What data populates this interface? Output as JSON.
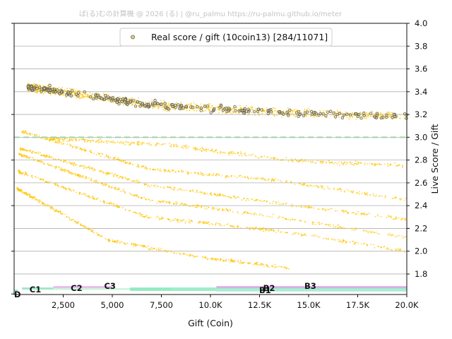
{
  "watermark": "ぱ(る)むの計算機 @ 2026 (る) | @ru_palmu  https://ru-palmu.github.io/meter",
  "chart_data": {
    "type": "scatter",
    "xlabel": "Gift (Coin)",
    "ylabel": "Live Score / Gift",
    "xlim": [
      0,
      20000
    ],
    "ylim": [
      1.62,
      4.0
    ],
    "x_ticks": [
      {
        "value": 2500,
        "label": "2,500"
      },
      {
        "value": 5000,
        "label": "5,000"
      },
      {
        "value": 7500,
        "label": "7,500"
      },
      {
        "value": 10000,
        "label": "10.0K"
      },
      {
        "value": 12500,
        "label": "12.5K"
      },
      {
        "value": 15000,
        "label": "15.0K"
      },
      {
        "value": 17500,
        "label": "17.5K"
      },
      {
        "value": 20000,
        "label": "20.0K"
      }
    ],
    "y_ticks": [
      {
        "value": 1.8,
        "label": "1.8"
      },
      {
        "value": 2.0,
        "label": "2.0"
      },
      {
        "value": 2.2,
        "label": "2.2"
      },
      {
        "value": 2.4,
        "label": "2.4"
      },
      {
        "value": 2.6,
        "label": "2.6"
      },
      {
        "value": 2.8,
        "label": "2.8"
      },
      {
        "value": 3.0,
        "label": "3.0"
      },
      {
        "value": 3.2,
        "label": "3.2"
      },
      {
        "value": 3.4,
        "label": "3.4"
      },
      {
        "value": 3.6,
        "label": "3.6"
      },
      {
        "value": 3.8,
        "label": "3.8"
      },
      {
        "value": 4.0,
        "label": "4.0"
      }
    ],
    "grid": "horizontal",
    "reference_line": {
      "y": 3.0,
      "color": "#9fd4a8",
      "style": "dashed"
    },
    "legend": {
      "placement": "top-center",
      "entry": "Real score / gift (10coin13) [284/11071]"
    },
    "colors": {
      "background_points": "#ffc400",
      "real_points_fill": "#e6d27a",
      "real_points_edge": "#555555",
      "grid": "#b0b0b0"
    },
    "series_bands": [
      {
        "x_start": 700,
        "x_end": 20000,
        "y": [
          3.44,
          3.28,
          3.22,
          3.18
        ],
        "spread": 0.045
      },
      {
        "x_start": 1800,
        "x_end": 20000,
        "y": [
          2.99,
          2.93,
          2.8,
          2.75
        ],
        "spread": 0.025
      },
      {
        "x_start": 400,
        "x_end": 20000,
        "y": [
          3.05,
          2.72,
          2.62,
          2.45
        ],
        "spread": 0.02
      },
      {
        "x_start": 300,
        "x_end": 20000,
        "y": [
          2.9,
          2.58,
          2.42,
          2.28
        ],
        "spread": 0.02
      },
      {
        "x_start": 250,
        "x_end": 20000,
        "y": [
          2.85,
          2.45,
          2.3,
          2.12
        ],
        "spread": 0.02
      },
      {
        "x_start": 200,
        "x_end": 20000,
        "y": [
          2.7,
          2.3,
          2.18,
          2.0
        ],
        "spread": 0.02
      },
      {
        "x_start": 150,
        "x_end": 14000,
        "y": [
          2.55,
          2.1,
          1.95,
          1.85
        ],
        "spread": 0.02
      }
    ],
    "rank_bands": [
      {
        "label": "D",
        "x_start": 0,
        "x_end": 200,
        "label_x": 0
      },
      {
        "label": "C1",
        "x_start": 400,
        "x_end": 2000,
        "label_x": 1000
      },
      {
        "label": "C2",
        "x_start": 2000,
        "x_end": 5000,
        "label_x": 3100
      },
      {
        "label": "C3",
        "x_start": 2000,
        "x_end": 8000,
        "label_x": 4800
      },
      {
        "label": "B1",
        "x_start": 5900,
        "x_end": 20000,
        "label_x": 12700
      },
      {
        "label": "B2",
        "x_start": 10300,
        "x_end": 20000,
        "label_x": 12900
      },
      {
        "label": "B3",
        "x_start": 10300,
        "x_end": 20000,
        "label_x": 15000
      }
    ]
  }
}
